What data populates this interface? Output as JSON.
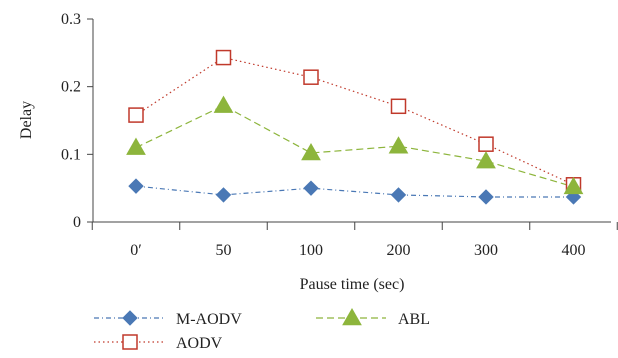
{
  "chart_data": {
    "type": "line",
    "title": "",
    "xlabel": "Pause time (sec)",
    "ylabel": "Delay",
    "categories": [
      "0′",
      "50",
      "100",
      "200",
      "300",
      "400"
    ],
    "ylim": [
      0,
      0.3
    ],
    "yticks": [
      "0",
      "0.1",
      "0.2",
      "0.3"
    ],
    "grid": false,
    "legend_position": "bottom-left",
    "series": [
      {
        "name": "M-AODV",
        "values": [
          0.053,
          0.04,
          0.05,
          0.04,
          0.037,
          0.037
        ],
        "color": "#4a78b5",
        "marker": "diamond",
        "dash": "dash-dot"
      },
      {
        "name": "AODV",
        "values": [
          0.158,
          0.243,
          0.214,
          0.171,
          0.115,
          0.055
        ],
        "color": "#c0392b",
        "marker": "square",
        "dash": "dotted"
      },
      {
        "name": "ABL",
        "values": [
          0.11,
          0.172,
          0.102,
          0.112,
          0.09,
          0.052
        ],
        "color": "#8db53c",
        "marker": "triangle",
        "dash": "dashed"
      }
    ]
  }
}
